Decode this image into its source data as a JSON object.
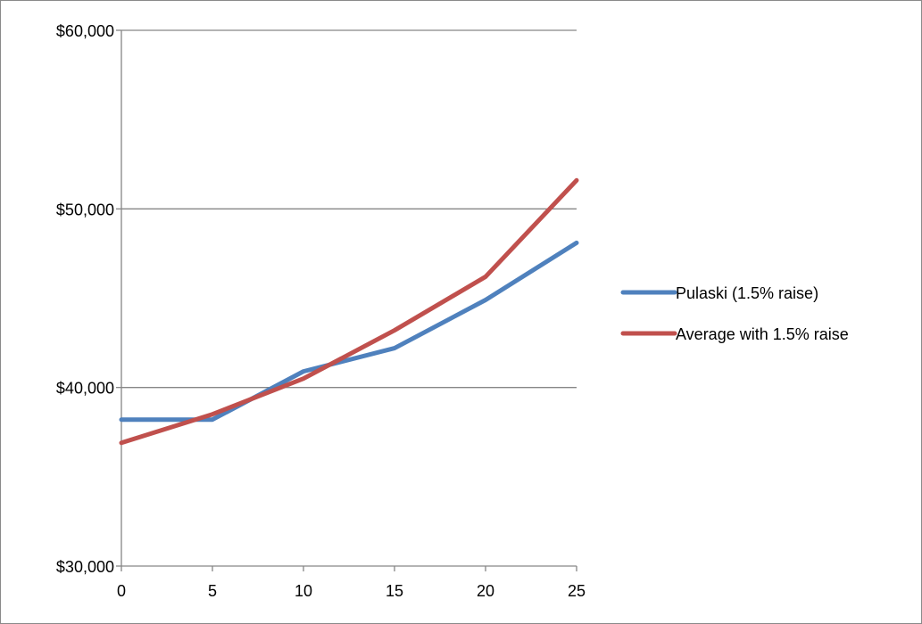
{
  "chart_data": {
    "type": "line",
    "title": "",
    "xlabel": "",
    "ylabel": "",
    "x": [
      0,
      5,
      10,
      15,
      20,
      25
    ],
    "x_ticks": [
      "0",
      "5",
      "10",
      "15",
      "20",
      "25"
    ],
    "y_ticks": [
      "$30,000",
      "$40,000",
      "$50,000",
      "$60,000"
    ],
    "y_tick_values": [
      30000,
      40000,
      50000,
      60000
    ],
    "xlim": [
      0,
      25
    ],
    "ylim": [
      30000,
      60000
    ],
    "grid": "horizontal major gridlines",
    "legend_position": "right",
    "series": [
      {
        "name": "Pulaski (1.5% raise)",
        "color": "#4f81bd",
        "values": [
          38200,
          38200,
          40900,
          42200,
          44900,
          48100
        ]
      },
      {
        "name": "Average with 1.5% raise",
        "color": "#c0504d",
        "values": [
          36900,
          38500,
          40500,
          43200,
          46200,
          51600
        ]
      }
    ]
  }
}
